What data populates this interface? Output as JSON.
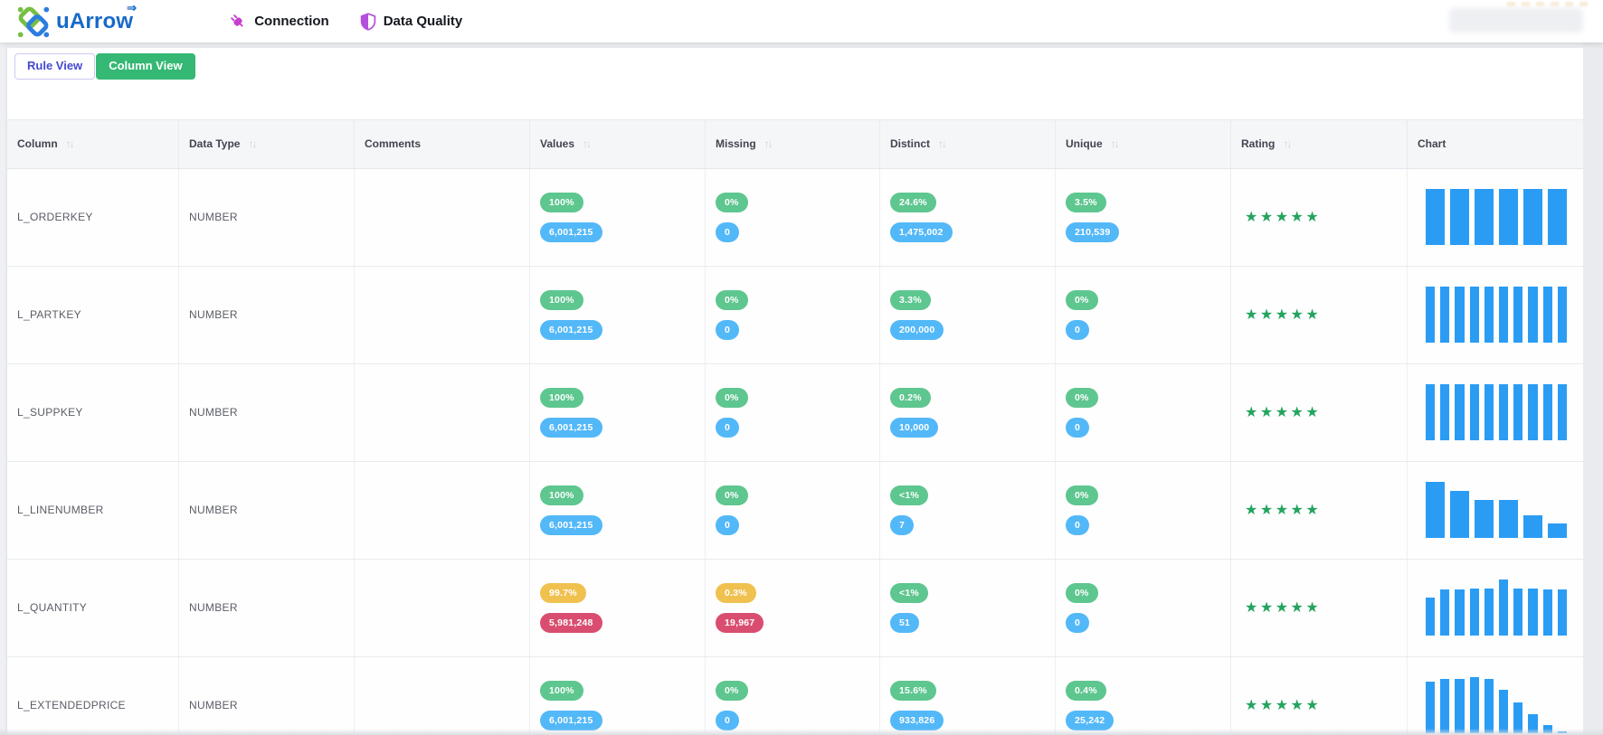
{
  "topbar": {
    "brand": "uArrow",
    "brand_arrow": "⇒",
    "nav_items": [
      {
        "label": "Connection",
        "icon": "plug-icon"
      },
      {
        "label": "Data Quality",
        "icon": "shield-icon"
      }
    ]
  },
  "tabs": [
    {
      "label": "Rule View",
      "active": false
    },
    {
      "label": "Column View",
      "active": true
    }
  ],
  "colors": {
    "green": "#5ec68f",
    "blue": "#53b8f8",
    "yellow": "#f0c14f",
    "red": "#d94e70",
    "bar": "#2b9cf4",
    "star": "#23a45f",
    "tab_active_bg": "#35b874",
    "brand_blue": "#1769c8",
    "logo_green": "#76bf44",
    "plug_magenta": "#c73fd1",
    "shield_violet": "#b44fdd"
  },
  "table": {
    "headers": [
      {
        "label": "Column",
        "sortable": true
      },
      {
        "label": "Data Type",
        "sortable": true
      },
      {
        "label": "Comments",
        "sortable": false
      },
      {
        "label": "Values",
        "sortable": true
      },
      {
        "label": "Missing",
        "sortable": true
      },
      {
        "label": "Distinct",
        "sortable": true
      },
      {
        "label": "Unique",
        "sortable": true
      },
      {
        "label": "Rating",
        "sortable": true
      },
      {
        "label": "Chart",
        "sortable": false
      }
    ],
    "rows": [
      {
        "column": "L_ORDERKEY",
        "data_type": "NUMBER",
        "comments": "",
        "values": {
          "pct": "100%",
          "pct_color": "green",
          "count": "6,001,215",
          "count_color": "blue"
        },
        "missing": {
          "pct": "0%",
          "pct_color": "green",
          "count": "0",
          "count_color": "blue"
        },
        "distinct": {
          "pct": "24.6%",
          "pct_color": "green",
          "count": "1,475,002",
          "count_color": "blue"
        },
        "unique": {
          "pct": "3.5%",
          "pct_color": "green",
          "count": "210,539",
          "count_color": "blue"
        },
        "rating": 5,
        "chart": {
          "type": "bar",
          "values": [
            1,
            1,
            1,
            1,
            1,
            1
          ]
        }
      },
      {
        "column": "L_PARTKEY",
        "data_type": "NUMBER",
        "comments": "",
        "values": {
          "pct": "100%",
          "pct_color": "green",
          "count": "6,001,215",
          "count_color": "blue"
        },
        "missing": {
          "pct": "0%",
          "pct_color": "green",
          "count": "0",
          "count_color": "blue"
        },
        "distinct": {
          "pct": "3.3%",
          "pct_color": "green",
          "count": "200,000",
          "count_color": "blue"
        },
        "unique": {
          "pct": "0%",
          "pct_color": "green",
          "count": "0",
          "count_color": "blue"
        },
        "rating": 5,
        "chart": {
          "type": "bar",
          "values": [
            1,
            1,
            1,
            1,
            1,
            1,
            1,
            1,
            1,
            1
          ]
        }
      },
      {
        "column": "L_SUPPKEY",
        "data_type": "NUMBER",
        "comments": "",
        "values": {
          "pct": "100%",
          "pct_color": "green",
          "count": "6,001,215",
          "count_color": "blue"
        },
        "missing": {
          "pct": "0%",
          "pct_color": "green",
          "count": "0",
          "count_color": "blue"
        },
        "distinct": {
          "pct": "0.2%",
          "pct_color": "green",
          "count": "10,000",
          "count_color": "blue"
        },
        "unique": {
          "pct": "0%",
          "pct_color": "green",
          "count": "0",
          "count_color": "blue"
        },
        "rating": 5,
        "chart": {
          "type": "bar",
          "values": [
            1,
            1,
            1,
            1,
            1,
            1,
            1,
            1,
            1,
            1
          ]
        }
      },
      {
        "column": "L_LINENUMBER",
        "data_type": "NUMBER",
        "comments": "",
        "values": {
          "pct": "100%",
          "pct_color": "green",
          "count": "6,001,215",
          "count_color": "blue"
        },
        "missing": {
          "pct": "0%",
          "pct_color": "green",
          "count": "0",
          "count_color": "blue"
        },
        "distinct": {
          "pct": "<1%",
          "pct_color": "green",
          "count": "7",
          "count_color": "blue"
        },
        "unique": {
          "pct": "0%",
          "pct_color": "green",
          "count": "0",
          "count_color": "blue"
        },
        "rating": 5,
        "chart": {
          "type": "bar",
          "values": [
            1,
            0.85,
            0.69,
            0.69,
            0.41,
            0.27
          ]
        }
      },
      {
        "column": "L_QUANTITY",
        "data_type": "NUMBER",
        "comments": "",
        "values": {
          "pct": "99.7%",
          "pct_color": "yellow",
          "count": "5,981,248",
          "count_color": "red"
        },
        "missing": {
          "pct": "0.3%",
          "pct_color": "yellow",
          "count": "19,967",
          "count_color": "red"
        },
        "distinct": {
          "pct": "<1%",
          "pct_color": "green",
          "count": "51",
          "count_color": "blue"
        },
        "unique": {
          "pct": "0%",
          "pct_color": "green",
          "count": "0",
          "count_color": "blue"
        },
        "rating": 5,
        "chart": {
          "type": "bar",
          "values": [
            0.69,
            0.83,
            0.83,
            0.84,
            0.84,
            1,
            0.84,
            0.84,
            0.83,
            0.83
          ]
        }
      },
      {
        "column": "L_EXTENDEDPRICE",
        "data_type": "NUMBER",
        "comments": "",
        "values": {
          "pct": "100%",
          "pct_color": "green",
          "count": "6,001,215",
          "count_color": "blue"
        },
        "missing": {
          "pct": "0%",
          "pct_color": "green",
          "count": "0",
          "count_color": "blue"
        },
        "distinct": {
          "pct": "15.6%",
          "pct_color": "green",
          "count": "933,826",
          "count_color": "blue"
        },
        "unique": {
          "pct": "0.4%",
          "pct_color": "green",
          "count": "25,242",
          "count_color": "blue"
        },
        "rating": 5,
        "chart": {
          "type": "bar",
          "values": [
            0.92,
            0.98,
            0.98,
            1,
            0.98,
            0.78,
            0.55,
            0.35,
            0.16,
            0.04
          ]
        }
      }
    ]
  }
}
